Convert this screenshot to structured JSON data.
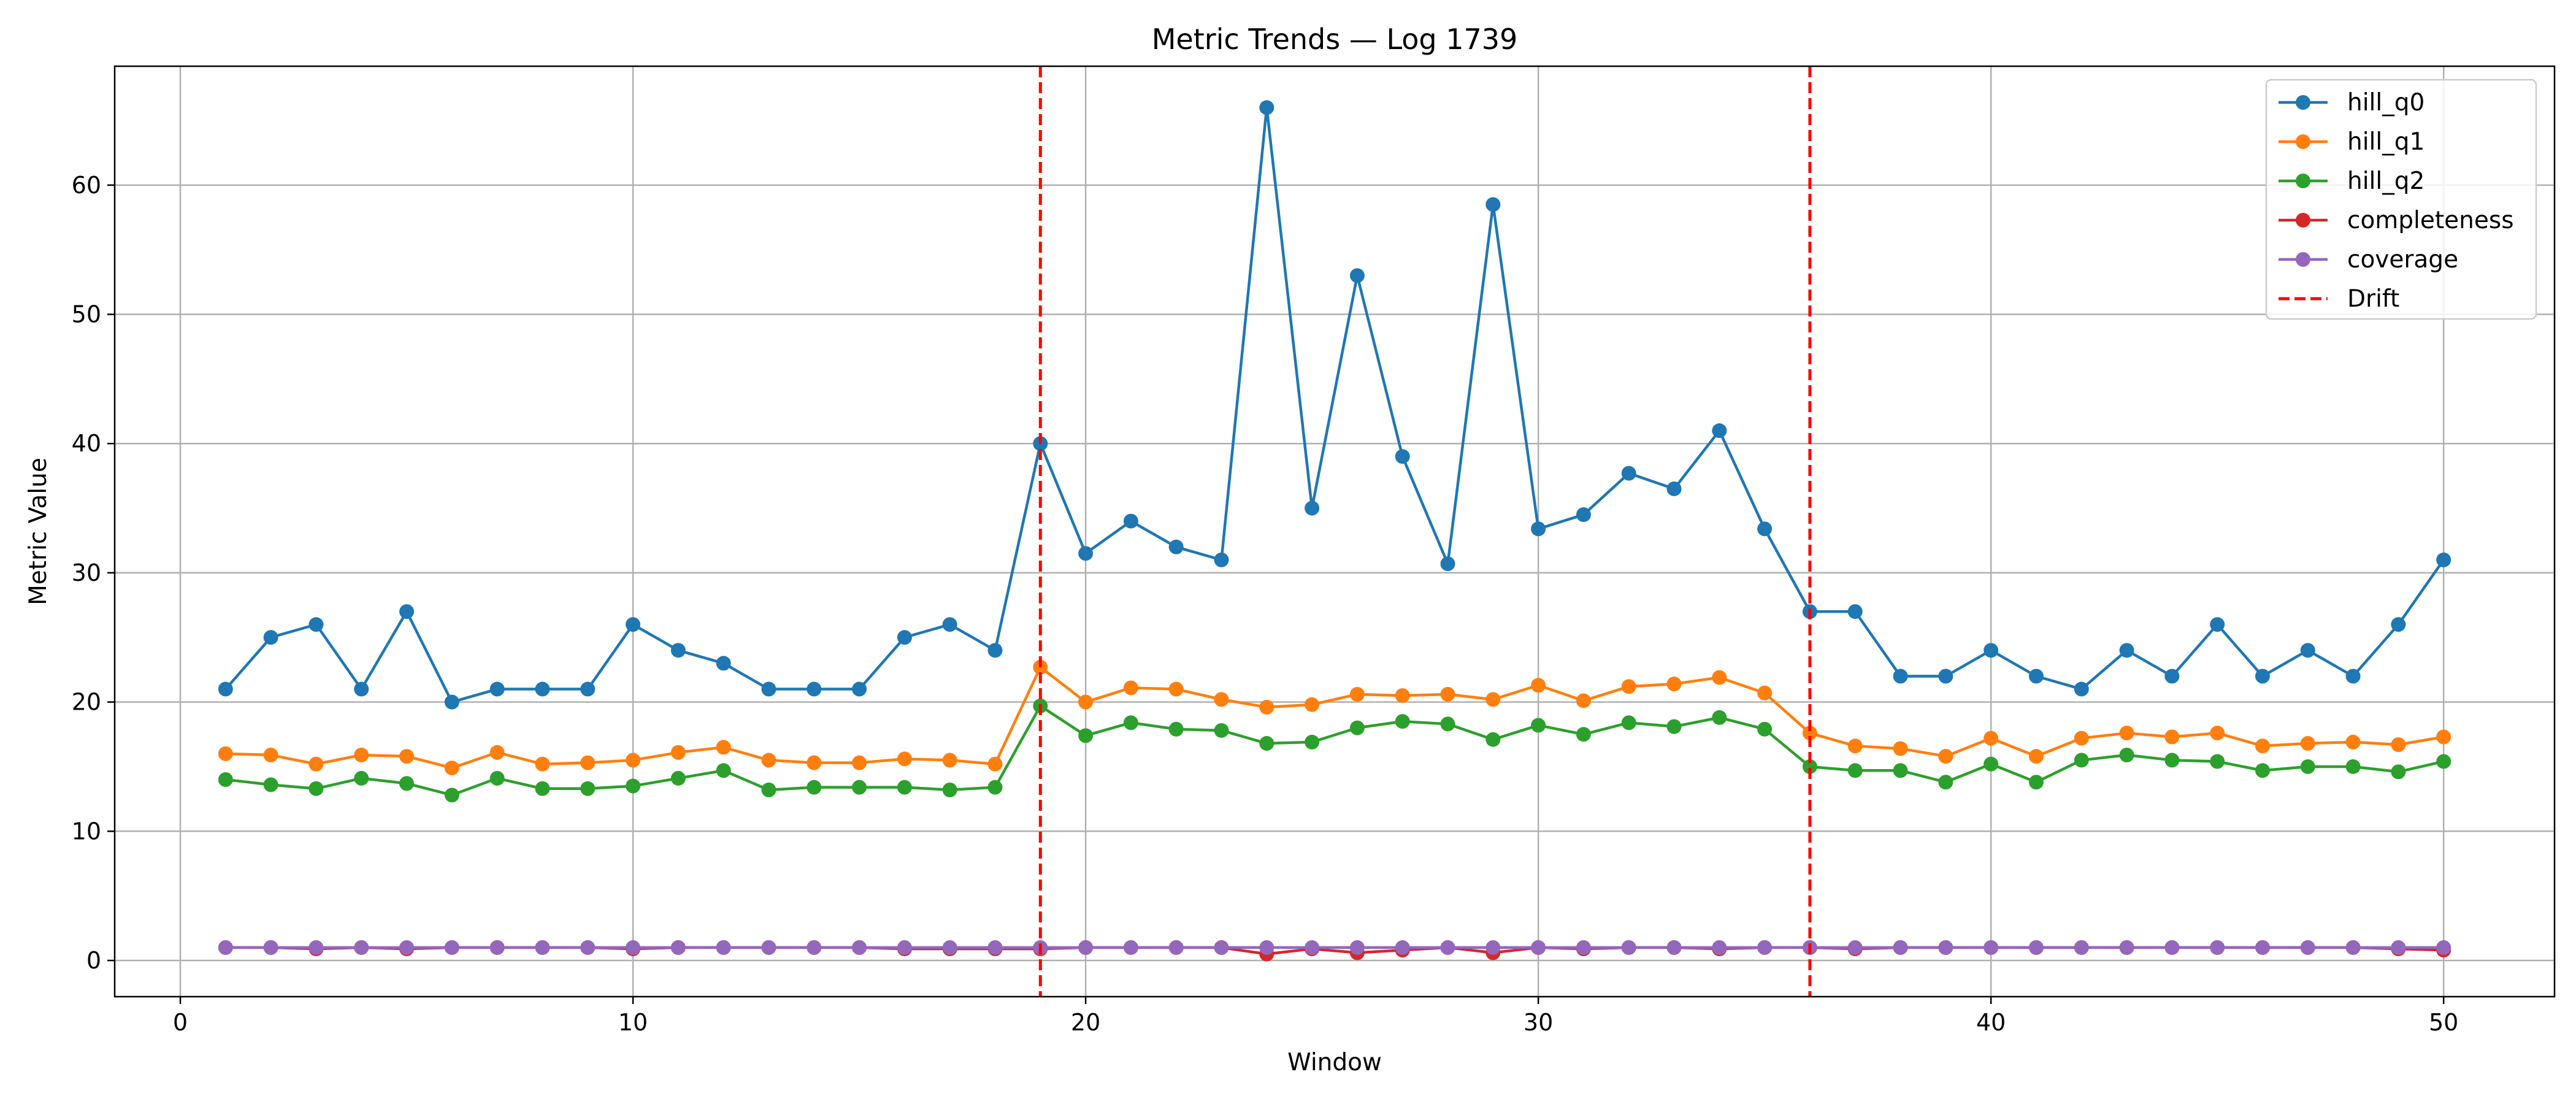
{
  "chart_data": {
    "type": "line",
    "title": "Metric Trends — Log 1739",
    "xlabel": "Window",
    "ylabel": "Metric Value",
    "xlim": [
      -1.45,
      52.45
    ],
    "ylim": [
      -2.8,
      69.2
    ],
    "xticks": [
      0,
      10,
      20,
      30,
      40,
      50
    ],
    "yticks": [
      0,
      10,
      20,
      30,
      40,
      50,
      60
    ],
    "grid": true,
    "legend_position": "top-right",
    "x": [
      1,
      2,
      3,
      4,
      5,
      6,
      7,
      8,
      9,
      10,
      11,
      12,
      13,
      14,
      15,
      16,
      17,
      18,
      19,
      20,
      21,
      22,
      23,
      24,
      25,
      26,
      27,
      28,
      29,
      30,
      31,
      32,
      33,
      34,
      35,
      36,
      37,
      38,
      39,
      40,
      41,
      42,
      43,
      44,
      45,
      46,
      47,
      48,
      49,
      50
    ],
    "series": [
      {
        "name": "hill_q0",
        "color": "#1f77b4",
        "values": [
          21,
          25,
          26,
          21,
          27,
          20,
          21,
          21,
          21,
          26,
          24,
          23,
          21,
          21,
          21,
          25,
          26,
          24,
          40,
          31.5,
          34,
          32,
          31,
          66,
          35,
          53,
          39,
          30.7,
          58.5,
          33.4,
          34.5,
          37.7,
          36.5,
          41,
          33.4,
          27,
          27,
          22,
          22,
          24,
          22,
          21,
          24,
          22,
          26,
          22,
          24,
          22,
          26,
          31
        ]
      },
      {
        "name": "hill_q1",
        "color": "#ff7f0e",
        "values": [
          16,
          15.9,
          15.2,
          15.9,
          15.8,
          14.9,
          16.1,
          15.2,
          15.3,
          15.5,
          16.1,
          16.5,
          15.5,
          15.3,
          15.3,
          15.6,
          15.5,
          15.2,
          22.7,
          20,
          21.1,
          21,
          20.2,
          19.6,
          19.8,
          20.6,
          20.5,
          20.6,
          20.2,
          21.3,
          20.1,
          21.2,
          21.4,
          21.9,
          20.7,
          17.6,
          16.6,
          16.4,
          15.8,
          17.2,
          15.8,
          17.2,
          17.6,
          17.3,
          17.6,
          16.6,
          16.8,
          16.9,
          16.7,
          17.3
        ]
      },
      {
        "name": "hill_q2",
        "color": "#2ca02c",
        "values": [
          14,
          13.6,
          13.3,
          14.1,
          13.7,
          12.8,
          14.1,
          13.3,
          13.3,
          13.5,
          14.1,
          14.7,
          13.2,
          13.4,
          13.4,
          13.4,
          13.2,
          13.4,
          19.7,
          17.4,
          18.4,
          17.9,
          17.8,
          16.8,
          16.9,
          18,
          18.5,
          18.3,
          17.1,
          18.2,
          17.5,
          18.4,
          18.1,
          18.8,
          17.9,
          15,
          14.7,
          14.7,
          13.8,
          15.2,
          13.8,
          15.5,
          15.9,
          15.5,
          15.4,
          14.7,
          15,
          15,
          14.6,
          15.4
        ]
      },
      {
        "name": "completeness",
        "color": "#d62728",
        "values": [
          1,
          1,
          0.9,
          1,
          0.9,
          1,
          1,
          1,
          1,
          0.9,
          1,
          1,
          1,
          1,
          1,
          0.9,
          0.9,
          0.9,
          0.9,
          1,
          1,
          1,
          1,
          0.5,
          0.9,
          0.6,
          0.8,
          1,
          0.6,
          1,
          0.9,
          1,
          1,
          0.9,
          1,
          1,
          0.9,
          1,
          1,
          1,
          1,
          1,
          1,
          1,
          1,
          1,
          1,
          1,
          0.9,
          0.8
        ]
      },
      {
        "name": "coverage",
        "color": "#9467bd",
        "values": [
          1,
          1,
          1,
          1,
          1,
          1,
          1,
          1,
          1,
          1,
          1,
          1,
          1,
          1,
          1,
          1,
          1,
          1,
          1,
          1,
          1,
          1,
          1,
          1,
          1,
          1,
          1,
          1,
          1,
          1,
          1,
          1,
          1,
          1,
          1,
          1,
          1,
          1,
          1,
          1,
          1,
          1,
          1,
          1,
          1,
          1,
          1,
          1,
          1,
          1
        ]
      }
    ],
    "vlines": {
      "name": "Drift",
      "color": "#ff0000",
      "style": "dashed",
      "x": [
        19,
        36
      ]
    }
  }
}
